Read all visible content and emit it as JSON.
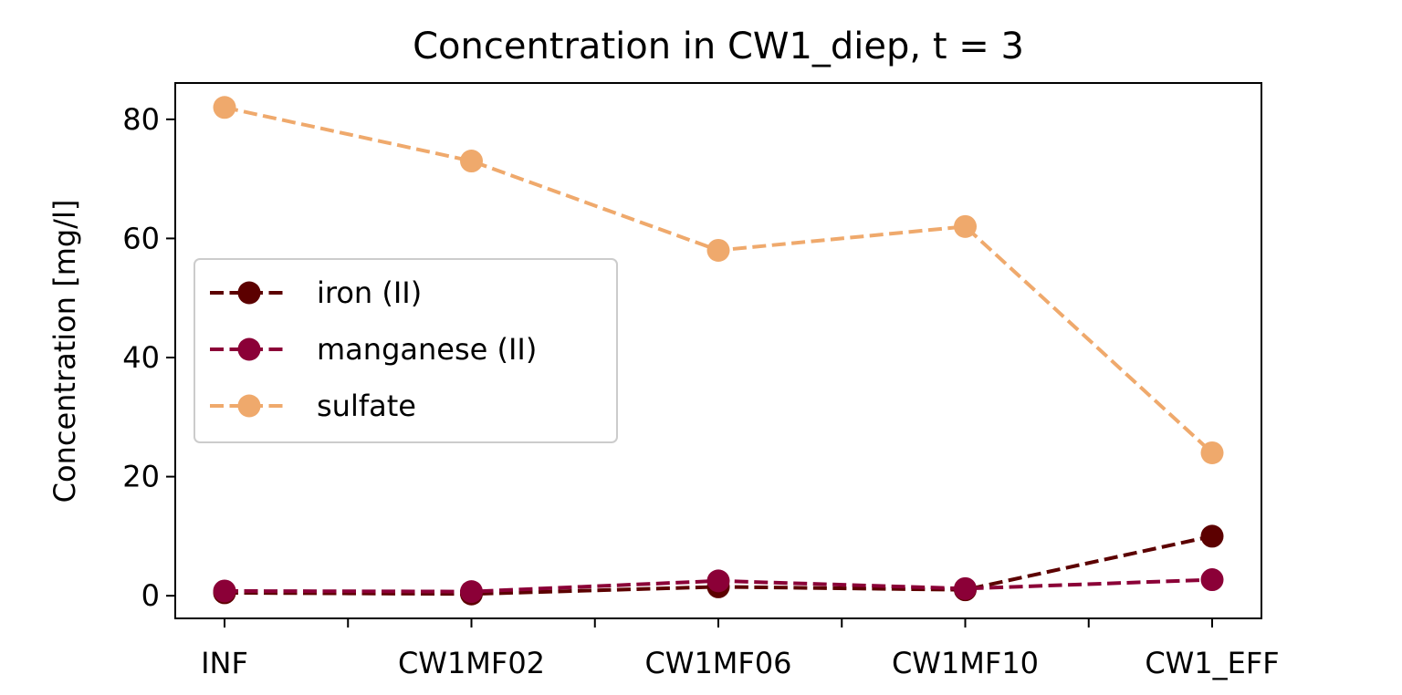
{
  "chart_data": {
    "type": "line",
    "title": "Concentration in CW1_diep, t = 3",
    "xlabel": "",
    "ylabel": "Concentration [mg/l]",
    "categories": [
      "INF",
      "CW1MF02",
      "CW1MF06",
      "CW1MF10",
      "CW1_EFF"
    ],
    "yticks": [
      0,
      20,
      40,
      60,
      80
    ],
    "ylim": [
      -3.8,
      86.1
    ],
    "grid": false,
    "legend_position": "center-left",
    "series": [
      {
        "name": "iron (II)",
        "color": "#5c0000",
        "values": [
          0.5,
          0.3,
          1.5,
          1.0,
          10.0
        ]
      },
      {
        "name": "manganese (II)",
        "color": "#8b0037",
        "values": [
          0.8,
          0.7,
          2.5,
          1.2,
          2.7
        ]
      },
      {
        "name": "sulfate",
        "color": "#efa96c",
        "values": [
          82,
          73,
          58,
          62,
          24
        ]
      }
    ]
  }
}
